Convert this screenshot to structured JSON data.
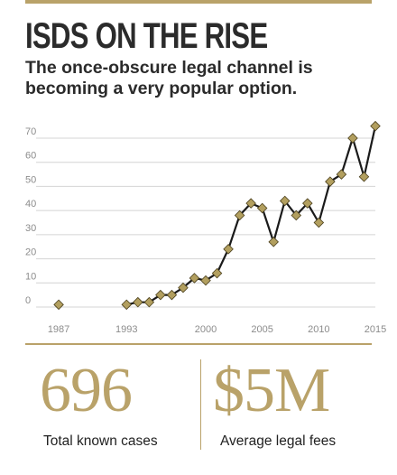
{
  "header": {
    "title": "ISDS ON THE RISE",
    "subtitle": "The once-obscure legal channel is becoming a very popular option."
  },
  "colors": {
    "accent": "#b9a269",
    "marker": "#b29f5f",
    "line": "#1a1a1a",
    "text": "#2b2b2b",
    "grid": "#d4d4d4",
    "axis_text": "#8c8c8c"
  },
  "stats": [
    {
      "value": "696",
      "label": "Total known cases"
    },
    {
      "value": "$5M",
      "label": "Average legal fees"
    }
  ],
  "chart_data": {
    "type": "line",
    "markers": "diamond",
    "xlim": [
      1985,
      2015
    ],
    "ylim": [
      0,
      70
    ],
    "yticks": [
      0,
      10,
      20,
      30,
      40,
      50,
      60,
      70
    ],
    "xticks": [
      1987,
      1993,
      2000,
      2005,
      2010,
      2015
    ],
    "grid": true,
    "isolated_points": [
      {
        "x": 1987,
        "y": 1
      }
    ],
    "series": [
      {
        "x": [
          1993,
          1994,
          1995,
          1996,
          1997,
          1998,
          1999,
          2000,
          2001,
          2002,
          2003,
          2004,
          2005,
          2006,
          2007,
          2008,
          2009,
          2010,
          2011,
          2012,
          2013,
          2014,
          2015
        ],
        "values": [
          1,
          2,
          2,
          5,
          5,
          8,
          12,
          11,
          14,
          24,
          38,
          43,
          41,
          27,
          44,
          38,
          43,
          35,
          52,
          55,
          70,
          54,
          75
        ]
      }
    ]
  }
}
